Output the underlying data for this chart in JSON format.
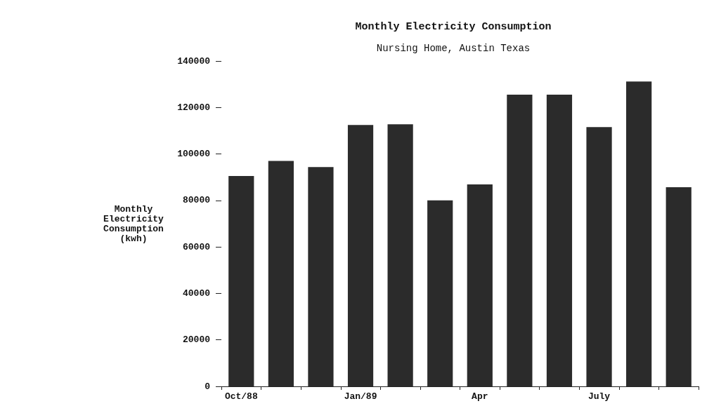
{
  "chart_data": {
    "type": "bar",
    "title": "Monthly Electricity Consumption",
    "subtitle": "Nursing Home, Austin Texas",
    "ylabel": "Monthly Electricity Consumption (kwh)",
    "categories": [
      "Oct/88",
      null,
      null,
      "Jan/89",
      null,
      null,
      "Apr",
      null,
      null,
      "July",
      null,
      null
    ],
    "values": [
      90500,
      97000,
      94400,
      112500,
      112800,
      80000,
      86900,
      125500,
      125500,
      111600,
      131200,
      85700
    ],
    "color": "#2b2b2b",
    "ylim": [
      0,
      140000
    ],
    "yticks": [
      0,
      20000,
      40000,
      60000,
      80000,
      100000,
      120000,
      140000
    ],
    "grid": false
  }
}
